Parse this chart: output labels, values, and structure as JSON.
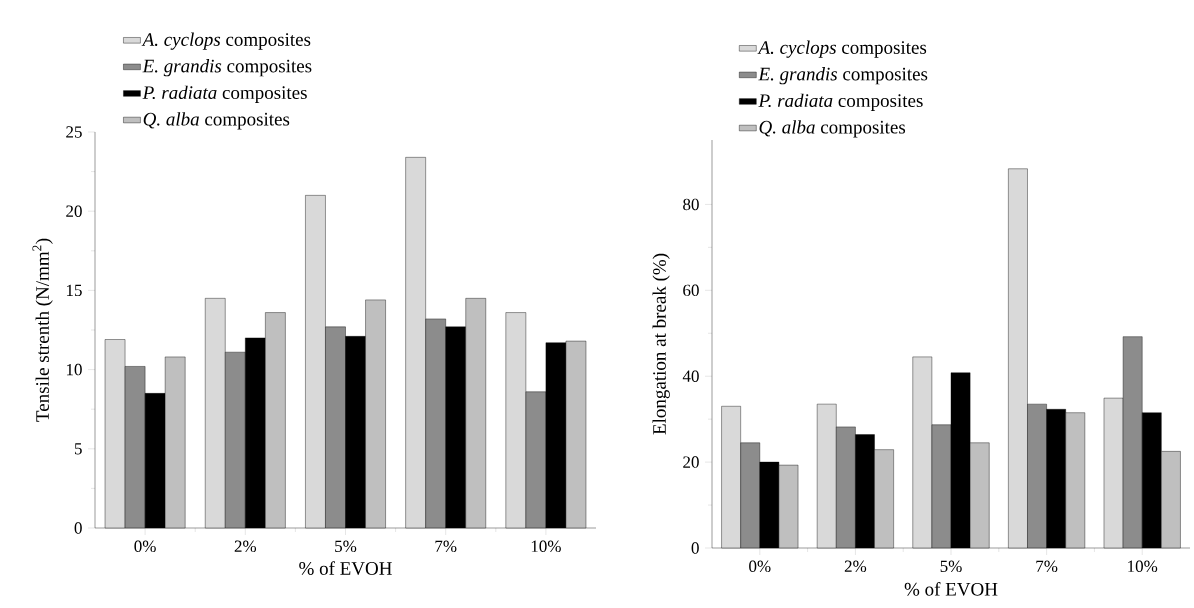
{
  "chart_data": [
    {
      "type": "bar",
      "categories": [
        "0%",
        "2%",
        "5%",
        "7%",
        "10%"
      ],
      "xlabel": "% of EVOH",
      "ylabel": "Tensile strenth (N/mm$^{2}$)",
      "ylim": [
        0,
        25
      ],
      "yticks": [
        0,
        5,
        10,
        15,
        20,
        25
      ],
      "legend": "top left",
      "series": [
        {
          "name": "*A. cyclops* composites",
          "color": "#d9d9d9",
          "values": [
            11.9,
            14.5,
            21.0,
            23.4,
            13.6
          ]
        },
        {
          "name": "*E. grandis* composites",
          "color": "#8c8c8c",
          "values": [
            10.2,
            11.1,
            12.7,
            13.2,
            8.6
          ]
        },
        {
          "name": "*P. radiata* composites",
          "color": "#000000",
          "values": [
            8.5,
            12.0,
            12.1,
            12.7,
            11.7
          ]
        },
        {
          "name": "*Q. alba* composites",
          "color": "#bfbfbf",
          "values": [
            10.8,
            13.6,
            14.4,
            14.5,
            11.8
          ]
        }
      ]
    },
    {
      "type": "bar",
      "categories": [
        "0%",
        "2%",
        "5%",
        "7%",
        "10%"
      ],
      "xlabel": "% of EVOH",
      "ylabel": "Elongation at break (%)",
      "ylim": [
        0,
        95
      ],
      "yticks": [
        0,
        20,
        40,
        60,
        80
      ],
      "legend": "top left",
      "series": [
        {
          "name": "*A. cyclops* composites",
          "color": "#d9d9d9",
          "values": [
            33.0,
            33.5,
            44.5,
            88.3,
            34.9
          ]
        },
        {
          "name": "*E. grandis* composites",
          "color": "#8c8c8c",
          "values": [
            24.5,
            28.2,
            28.7,
            33.5,
            49.2
          ]
        },
        {
          "name": "*P. radiata* composites",
          "color": "#000000",
          "values": [
            20.0,
            26.4,
            40.8,
            32.3,
            31.5
          ]
        },
        {
          "name": "*Q. alba* composites",
          "color": "#bfbfbf",
          "values": [
            19.3,
            22.9,
            24.5,
            31.5,
            22.5
          ]
        }
      ]
    }
  ]
}
